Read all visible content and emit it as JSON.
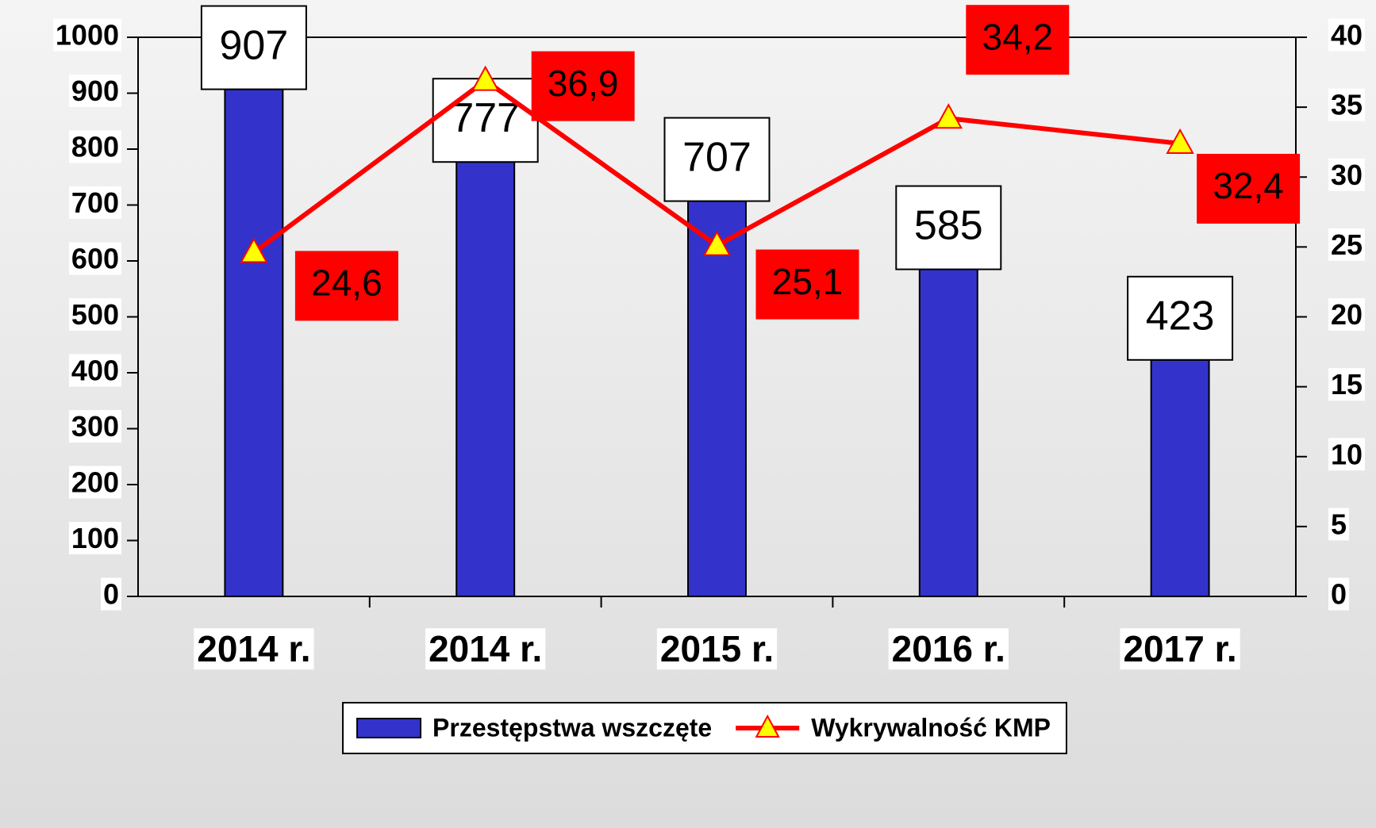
{
  "chart_data": {
    "type": "bar",
    "categories": [
      "2014 r.",
      "2014 r.",
      "2015 r.",
      "2016 r.",
      "2017 r."
    ],
    "series": [
      {
        "name": "Przestępstwa wszczęte",
        "type": "bar",
        "color": "#3333cc",
        "values": [
          907,
          777,
          707,
          585,
          423
        ]
      },
      {
        "name": "Wykrywalność KMP",
        "type": "line",
        "axis": "y2",
        "color": "#ff0000",
        "marker_color": "#ffff00",
        "values": [
          24.6,
          36.9,
          25.1,
          34.2,
          32.4
        ],
        "value_labels": [
          "24,6",
          "36,9",
          "25,1",
          "34,2",
          "32,4"
        ]
      }
    ],
    "ylim": [
      0,
      1000
    ],
    "yticks": [
      0,
      100,
      200,
      300,
      400,
      500,
      600,
      700,
      800,
      900,
      1000
    ],
    "y2lim": [
      0,
      40
    ],
    "y2ticks": [
      0,
      5,
      10,
      15,
      20,
      25,
      30,
      35,
      40
    ],
    "legend": "bottom"
  }
}
